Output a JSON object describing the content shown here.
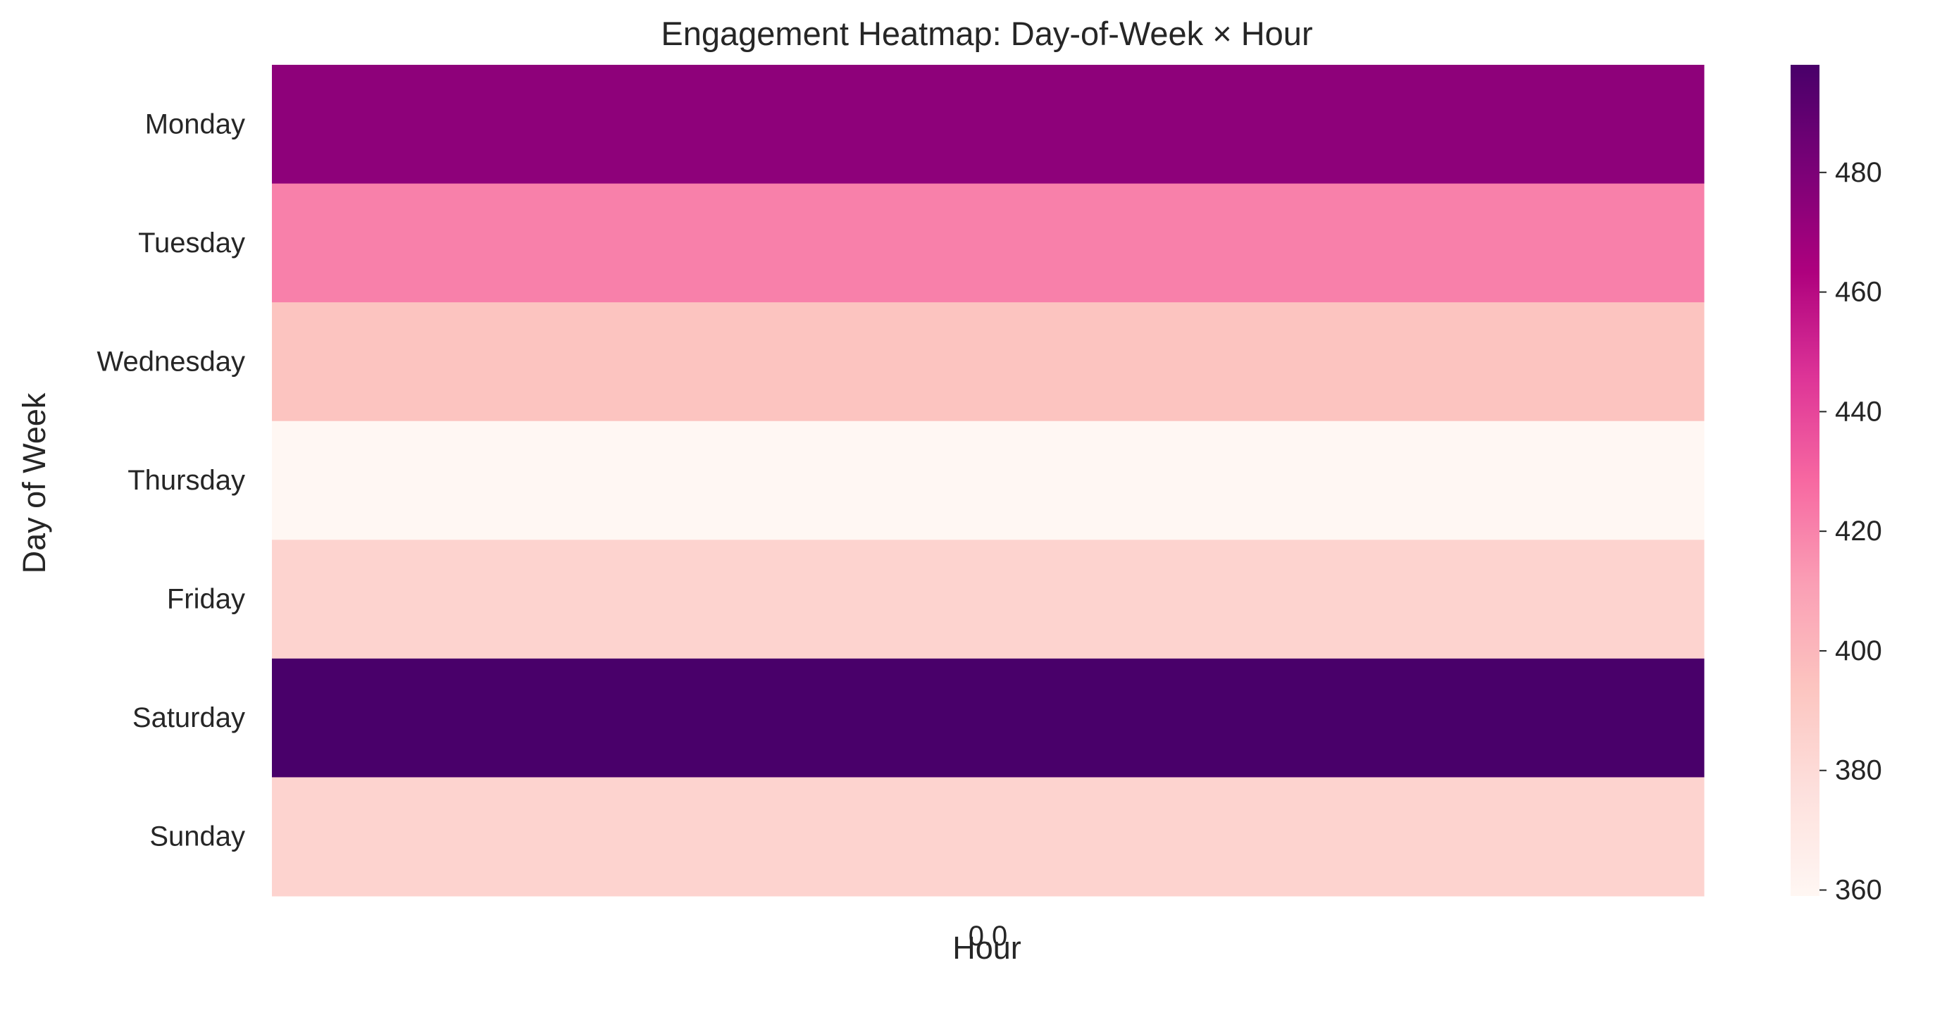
{
  "chart_data": {
    "type": "heatmap",
    "title": "Engagement Heatmap: Day-of-Week × Hour",
    "xlabel": "Hour",
    "ylabel": "Day of Week",
    "x_categories": [
      "0.0"
    ],
    "y_categories": [
      "Monday",
      "Tuesday",
      "Wednesday",
      "Thursday",
      "Friday",
      "Saturday",
      "Sunday"
    ],
    "values": [
      [
        474
      ],
      [
        421
      ],
      [
        394
      ],
      [
        359
      ],
      [
        385
      ],
      [
        498
      ],
      [
        385
      ]
    ],
    "colorbar": {
      "min": 359,
      "max": 498,
      "ticks": [
        360,
        380,
        400,
        420,
        440,
        460,
        480
      ],
      "colormap": "RdPu",
      "colormap_stops": [
        "#fff7f3",
        "#fde0dd",
        "#fcc5c0",
        "#fa9fb5",
        "#f768a1",
        "#dd3497",
        "#ae017e",
        "#7a0177",
        "#49006a"
      ]
    },
    "grid": false
  }
}
